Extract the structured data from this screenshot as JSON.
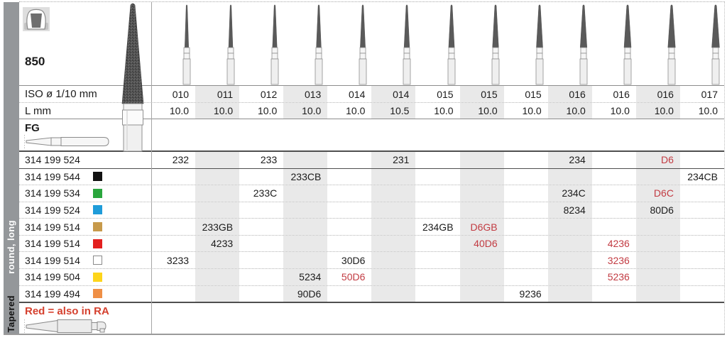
{
  "sidebar": {
    "category": "Tapered",
    "subcategory": "round, long"
  },
  "header": {
    "figure_number": "850"
  },
  "table": {
    "iso_label": "ISO ø 1/10 mm",
    "l_label": "L mm",
    "grip_label": "FG",
    "iso_values": [
      "010",
      "011",
      "012",
      "013",
      "014",
      "014",
      "015",
      "015",
      "015",
      "016",
      "016",
      "016",
      "017"
    ],
    "l_values": [
      "10.0",
      "10.0",
      "10.0",
      "10.0",
      "10.0",
      "10.5",
      "10.0",
      "10.0",
      "10.0",
      "10.0",
      "10.0",
      "10.0",
      "10.0"
    ]
  },
  "products": [
    {
      "code": "314 199 524",
      "chip": null,
      "cells": [
        {
          "col": 1,
          "text": "232"
        },
        {
          "col": 3,
          "text": "233"
        },
        {
          "col": 6,
          "text": "231"
        },
        {
          "col": 10,
          "text": "234"
        },
        {
          "col": 12,
          "text": "D6",
          "red": true
        }
      ]
    },
    {
      "code": "314 199 544",
      "chip": {
        "name": "black",
        "color": "#121212"
      },
      "cells": [
        {
          "col": 4,
          "text": "233CB"
        },
        {
          "col": 13,
          "text": "234CB"
        }
      ]
    },
    {
      "code": "314 199 534",
      "chip": {
        "name": "green",
        "color": "#2aa63d"
      },
      "cells": [
        {
          "col": 3,
          "text": "233C"
        },
        {
          "col": 10,
          "text": "234C"
        },
        {
          "col": 12,
          "text": "D6C",
          "red": true
        }
      ]
    },
    {
      "code": "314 199 524",
      "chip": {
        "name": "blue",
        "color": "#1f9cd9"
      },
      "cells": [
        {
          "col": 10,
          "text": "8234"
        },
        {
          "col": 12,
          "text": "80D6"
        }
      ]
    },
    {
      "code": "314 199 514",
      "chip": {
        "name": "gold",
        "color": "#c79a4b"
      },
      "cells": [
        {
          "col": 2,
          "text": "233GB"
        },
        {
          "col": 7,
          "text": "234GB"
        },
        {
          "col": 8,
          "text": "D6GB",
          "red": true
        }
      ]
    },
    {
      "code": "314 199 514",
      "chip": {
        "name": "red",
        "color": "#e3201f"
      },
      "cells": [
        {
          "col": 2,
          "text": "4233"
        },
        {
          "col": 8,
          "text": "40D6",
          "red": true
        },
        {
          "col": 11,
          "text": "4236",
          "red": true
        }
      ]
    },
    {
      "code": "314 199 514",
      "chip": {
        "name": "white",
        "color": "#ffffff",
        "border": true
      },
      "cells": [
        {
          "col": 1,
          "text": "3233"
        },
        {
          "col": 5,
          "text": "30D6"
        },
        {
          "col": 11,
          "text": "3236",
          "red": true
        }
      ]
    },
    {
      "code": "314 199 504",
      "chip": {
        "name": "yellow",
        "color": "#fdd51b"
      },
      "cells": [
        {
          "col": 4,
          "text": "5234"
        },
        {
          "col": 5,
          "text": "50D6",
          "red": true
        },
        {
          "col": 11,
          "text": "5236",
          "red": true
        }
      ]
    },
    {
      "code": "314 199 494",
      "chip": {
        "name": "orange",
        "color": "#ef8f46"
      },
      "cells": [
        {
          "col": 4,
          "text": "90D6"
        },
        {
          "col": 9,
          "text": "9236"
        }
      ]
    }
  ],
  "footer": {
    "note": "Red = also in RA"
  },
  "colors": {
    "stripe": "#e9e9e9",
    "red_code": "#c23b42",
    "note_red": "#d5402e",
    "sidebar_gray": "#94979a"
  }
}
